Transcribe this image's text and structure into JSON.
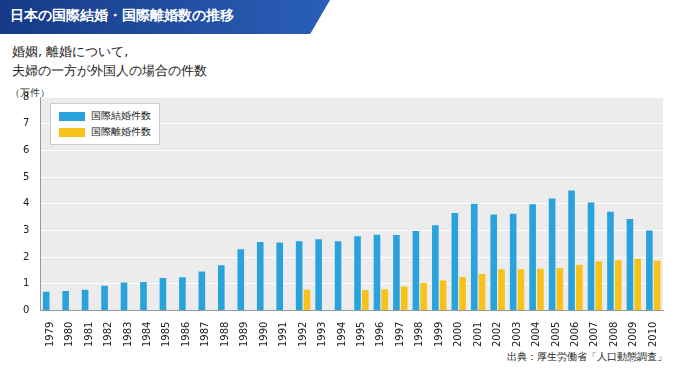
{
  "chart_data": {
    "type": "bar",
    "title": "日本の国際結婚・国際離婚数の推移",
    "subtitle": "婚姻, 離婚について,\n夫婦の一方が外国人の場合の件数",
    "y_label": "（万件）",
    "source": "出典：厚生労働省「人口動態調査」",
    "categories": [
      "1979",
      "1980",
      "1981",
      "1982",
      "1983",
      "1984",
      "1985",
      "1986",
      "1987",
      "1988",
      "1989",
      "1990",
      "1991",
      "1992",
      "1993",
      "1994",
      "1995",
      "1996",
      "1997",
      "1998",
      "1999",
      "2000",
      "2001",
      "2002",
      "2003",
      "2004",
      "2005",
      "2006",
      "2007",
      "2008",
      "2009",
      "2010"
    ],
    "series": [
      {
        "name": "国際結婚件数",
        "color": "#29a3dc",
        "values": [
          0.7,
          0.73,
          0.78,
          0.93,
          1.05,
          1.07,
          1.22,
          1.25,
          1.46,
          1.7,
          2.3,
          2.57,
          2.55,
          2.6,
          2.67,
          2.6,
          2.78,
          2.84,
          2.83,
          2.98,
          3.2,
          3.65,
          4.0,
          3.6,
          3.63,
          3.98,
          4.2,
          4.5,
          4.05,
          3.7,
          3.43,
          3.0
        ]
      },
      {
        "name": "国際離婚件数",
        "color": "#f7c21a",
        "values": [
          null,
          null,
          null,
          null,
          null,
          null,
          null,
          null,
          null,
          null,
          null,
          null,
          null,
          0.78,
          null,
          null,
          0.77,
          0.8,
          0.9,
          1.03,
          1.13,
          1.26,
          1.37,
          1.55,
          1.55,
          1.57,
          1.59,
          1.72,
          1.85,
          1.88,
          1.94,
          1.87
        ]
      }
    ],
    "ylim": [
      0,
      8
    ],
    "yticks": [
      0,
      1,
      2,
      3,
      4,
      5,
      6,
      7,
      8
    ],
    "grid": true,
    "legend": "upper left"
  }
}
